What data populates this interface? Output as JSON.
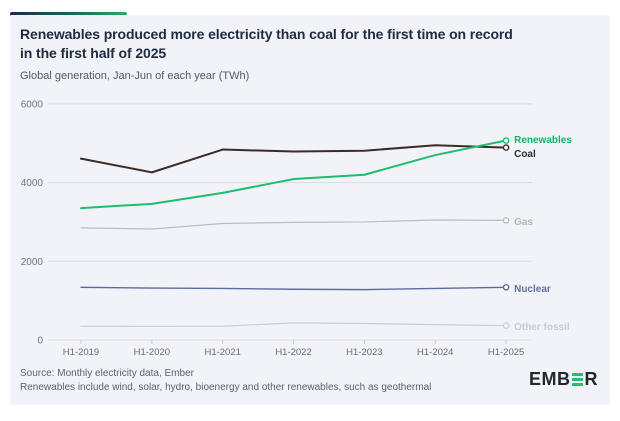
{
  "header": {
    "title_lines": [
      "Renewables produced more electricity than coal for the first time on record",
      "in the first half of 2025"
    ],
    "subtitle": "Global generation, Jan-Jun of each year (TWh)"
  },
  "footer": {
    "source": "Source: Monthly electricity data, Ember",
    "note": "Renewables include wind, solar, hydro, bioenergy and other renewables, such as geothermal",
    "logo_prefix": "EMB",
    "logo_suffix": "R"
  },
  "colors": {
    "card_background": "#f1f3f8",
    "title_text": "#202c40",
    "gridline": "#d7dbe2",
    "axis_text": "#6d7684",
    "accent_gradient_start": "#1b2a4a",
    "accent_gradient_end": "#27ae63",
    "logo_green": "#1fc36f"
  },
  "chart_data": {
    "type": "line",
    "title": "Renewables produced more electricity than coal for the first time on record in the first half of 2025",
    "subtitle": "Global generation, Jan-Jun of each year (TWh)",
    "xlabel": "",
    "ylabel": "TWh",
    "ylim": [
      0,
      6000
    ],
    "yticks": [
      0,
      2000,
      4000,
      6000
    ],
    "grid": true,
    "legend_position": "right-end-of-line",
    "categories": [
      "H1-2019",
      "H1-2020",
      "H1-2021",
      "H1-2022",
      "H1-2023",
      "H1-2024",
      "H1-2025"
    ],
    "series": [
      {
        "name": "Renewables",
        "color": "#1ebd70",
        "label_color": "#0fb564",
        "width": 2,
        "values": [
          3350,
          3460,
          3740,
          4090,
          4200,
          4700,
          5070
        ],
        "label_dy": -1
      },
      {
        "name": "Coal",
        "color": "#3d2b27",
        "label_color": "#2a2f3a",
        "width": 2,
        "values": [
          4610,
          4260,
          4840,
          4790,
          4810,
          4950,
          4890
        ],
        "label_dy": 6
      },
      {
        "name": "Gas",
        "color": "#b9bcc2",
        "label_color": "#b2b6bd",
        "width": 1.2,
        "values": [
          2850,
          2820,
          2960,
          2990,
          3000,
          3050,
          3040
        ],
        "label_dy": 1
      },
      {
        "name": "Nuclear",
        "color": "#5d6c9e",
        "label_color": "#66719f",
        "width": 1.4,
        "values": [
          1340,
          1320,
          1310,
          1290,
          1280,
          1310,
          1340
        ],
        "label_dy": 1
      },
      {
        "name": "Other fossil",
        "color": "#c9cedb",
        "label_color": "#c5cbd8",
        "width": 1.2,
        "values": [
          350,
          345,
          350,
          435,
          420,
          390,
          365
        ],
        "label_dy": 1
      }
    ]
  }
}
